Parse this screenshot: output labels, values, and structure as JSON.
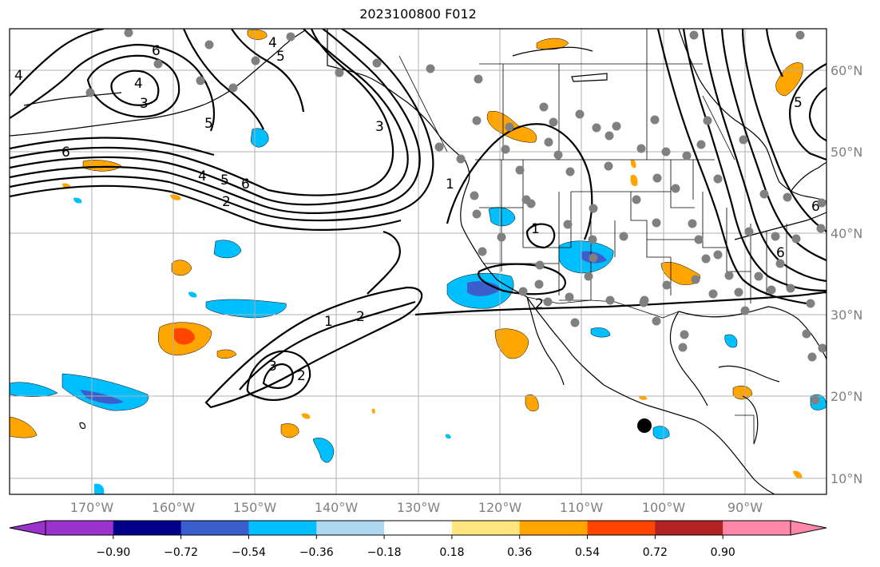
{
  "title": "2023100800 F012",
  "map": {
    "lat_labels": [
      {
        "lat": 60,
        "label": "60°N"
      },
      {
        "lat": 50,
        "label": "50°N"
      },
      {
        "lat": 40,
        "label": "40°N"
      },
      {
        "lat": 30,
        "label": "30°N"
      },
      {
        "lat": 20,
        "label": "20°N"
      },
      {
        "lat": 10,
        "label": "10°N"
      }
    ],
    "lon_labels": [
      {
        "lon": -170,
        "label": "170°W"
      },
      {
        "lon": -160,
        "label": "160°W"
      },
      {
        "lon": -150,
        "label": "150°W"
      },
      {
        "lon": -140,
        "label": "140°W"
      },
      {
        "lon": -130,
        "label": "130°W"
      },
      {
        "lon": -120,
        "label": "120°W"
      },
      {
        "lon": -110,
        "label": "110°W"
      },
      {
        "lon": -100,
        "label": "100°W"
      },
      {
        "lon": -90,
        "label": "90°W"
      }
    ],
    "contour_labels": [
      "6",
      "5",
      "4",
      "3",
      "4",
      "5",
      "6",
      "4",
      "5",
      "6",
      "2",
      "3",
      "1",
      "1",
      "2",
      "3",
      "2",
      "1",
      "2",
      "5",
      "6",
      "4",
      "6"
    ],
    "colors": {
      "gray_dot": "#808080",
      "black_dot": "#000000",
      "grid": "#b0b0b0"
    }
  },
  "colorbar": {
    "colors": [
      "#9933cc",
      "#00008b",
      "#3a5fcd",
      "#00bfff",
      "#add8f0",
      "#ffffff",
      "#ffe680",
      "#ffa500",
      "#ff4500",
      "#b22222",
      "#ff88aa"
    ],
    "ticks": [
      "−0.90",
      "−0.72",
      "−0.54",
      "−0.36",
      "−0.18",
      "0.18",
      "0.36",
      "0.54",
      "0.72",
      "0.90"
    ]
  }
}
